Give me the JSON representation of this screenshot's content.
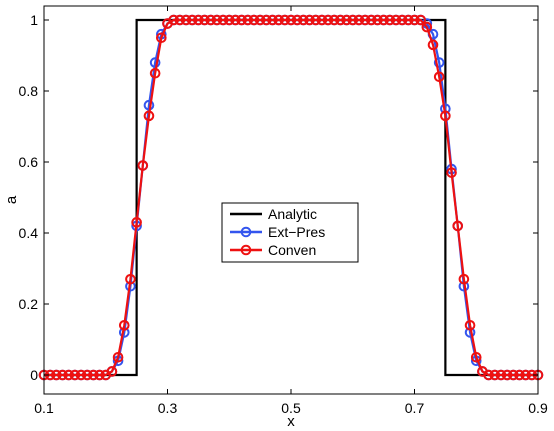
{
  "chart_data": {
    "type": "line",
    "xlabel": "x",
    "ylabel": "a",
    "xlim": [
      0.1,
      0.9
    ],
    "ylim": [
      0,
      1
    ],
    "xticks": [
      0.1,
      0.3,
      0.5,
      0.7,
      0.9
    ],
    "yticks": [
      0,
      0.2,
      0.4,
      0.6,
      0.8,
      1
    ],
    "legend": {
      "placement": "center"
    },
    "series": [
      {
        "name": "Analytic",
        "color": "#000000",
        "marker": "none",
        "x": [
          0.1,
          0.25,
          0.25,
          0.75,
          0.75,
          0.9
        ],
        "y": [
          0,
          0,
          1,
          1,
          0,
          0
        ]
      },
      {
        "name": "Ext−Pres",
        "color": "#3355ee",
        "marker": "circle",
        "x": [
          0.1,
          0.11,
          0.12,
          0.13,
          0.14,
          0.15,
          0.16,
          0.17,
          0.18,
          0.19,
          0.2,
          0.21,
          0.22,
          0.23,
          0.24,
          0.25,
          0.26,
          0.27,
          0.28,
          0.29,
          0.3,
          0.31,
          0.32,
          0.33,
          0.34,
          0.35,
          0.36,
          0.37,
          0.38,
          0.39,
          0.4,
          0.41,
          0.42,
          0.43,
          0.44,
          0.45,
          0.46,
          0.47,
          0.48,
          0.49,
          0.5,
          0.51,
          0.52,
          0.53,
          0.54,
          0.55,
          0.56,
          0.57,
          0.58,
          0.59,
          0.6,
          0.61,
          0.62,
          0.63,
          0.64,
          0.65,
          0.66,
          0.67,
          0.68,
          0.69,
          0.7,
          0.71,
          0.72,
          0.73,
          0.74,
          0.75,
          0.76,
          0.77,
          0.78,
          0.79,
          0.8,
          0.81,
          0.82,
          0.83,
          0.84,
          0.85,
          0.86,
          0.87,
          0.88,
          0.89,
          0.9
        ],
        "y": [
          0,
          0,
          0,
          0,
          0,
          0,
          0,
          0,
          0,
          0,
          0,
          0.01,
          0.04,
          0.12,
          0.25,
          0.42,
          0.59,
          0.76,
          0.88,
          0.96,
          0.99,
          1,
          1,
          1,
          1,
          1,
          1,
          1,
          1,
          1,
          1,
          1,
          1,
          1,
          1,
          1,
          1,
          1,
          1,
          1,
          1,
          1,
          1,
          1,
          1,
          1,
          1,
          1,
          1,
          1,
          1,
          1,
          1,
          1,
          1,
          1,
          1,
          1,
          1,
          1,
          1,
          1,
          0.99,
          0.96,
          0.88,
          0.75,
          0.58,
          0.42,
          0.25,
          0.12,
          0.04,
          0.01,
          0,
          0,
          0,
          0,
          0,
          0,
          0,
          0,
          0
        ]
      },
      {
        "name": "Conven",
        "color": "#ee1111",
        "marker": "circle",
        "x": [
          0.1,
          0.11,
          0.12,
          0.13,
          0.14,
          0.15,
          0.16,
          0.17,
          0.18,
          0.19,
          0.2,
          0.21,
          0.22,
          0.23,
          0.24,
          0.25,
          0.26,
          0.27,
          0.28,
          0.29,
          0.3,
          0.31,
          0.32,
          0.33,
          0.34,
          0.35,
          0.36,
          0.37,
          0.38,
          0.39,
          0.4,
          0.41,
          0.42,
          0.43,
          0.44,
          0.45,
          0.46,
          0.47,
          0.48,
          0.49,
          0.5,
          0.51,
          0.52,
          0.53,
          0.54,
          0.55,
          0.56,
          0.57,
          0.58,
          0.59,
          0.6,
          0.61,
          0.62,
          0.63,
          0.64,
          0.65,
          0.66,
          0.67,
          0.68,
          0.69,
          0.7,
          0.71,
          0.72,
          0.73,
          0.74,
          0.75,
          0.76,
          0.77,
          0.78,
          0.79,
          0.8,
          0.81,
          0.82,
          0.83,
          0.84,
          0.85,
          0.86,
          0.87,
          0.88,
          0.89,
          0.9
        ],
        "y": [
          0,
          0,
          0,
          0,
          0,
          0,
          0,
          0,
          0,
          0,
          0,
          0.01,
          0.05,
          0.14,
          0.27,
          0.43,
          0.59,
          0.73,
          0.85,
          0.95,
          0.99,
          1,
          1,
          1,
          1,
          1,
          1,
          1,
          1,
          1,
          1,
          1,
          1,
          1,
          1,
          1,
          1,
          1,
          1,
          1,
          1,
          1,
          1,
          1,
          1,
          1,
          1,
          1,
          1,
          1,
          1,
          1,
          1,
          1,
          1,
          1,
          1,
          1,
          1,
          1,
          1,
          1,
          0.98,
          0.93,
          0.84,
          0.73,
          0.57,
          0.42,
          0.27,
          0.14,
          0.05,
          0.01,
          0,
          0,
          0,
          0,
          0,
          0,
          0,
          0,
          0
        ]
      }
    ]
  }
}
